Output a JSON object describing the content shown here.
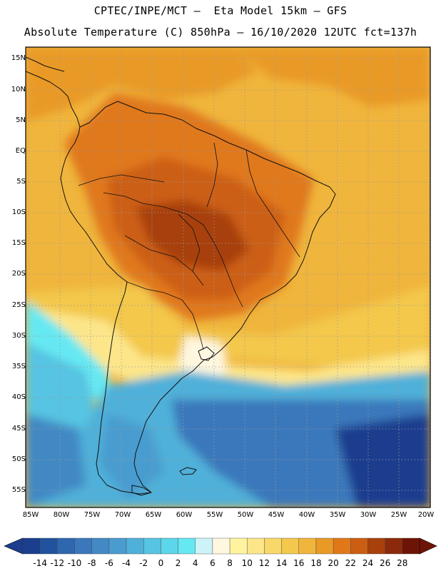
{
  "header": {
    "line1": "CPTEC/INPE/MCT –  Eta Model 15km – GFS",
    "line2": "Absolute Temperature (C) 850hPa – 16/10/2020 12UTC fct=137h"
  },
  "map": {
    "latitude_labels": [
      "15N",
      "10N",
      "5N",
      "EQ",
      "5S",
      "10S",
      "15S",
      "20S",
      "25S",
      "30S",
      "35S",
      "40S",
      "45S",
      "50S",
      "55S"
    ],
    "longitude_labels": [
      "85W",
      "80W",
      "75W",
      "70W",
      "65W",
      "60W",
      "55W",
      "50W",
      "45W",
      "40W",
      "35W",
      "30W",
      "25W",
      "20W"
    ],
    "lat_range": [
      15,
      -57.5
    ],
    "lon_range": [
      -85.5,
      -20
    ],
    "grid": "dotted"
  },
  "legend": {
    "labels": [
      "-14",
      "-12",
      "-10",
      "-8",
      "-6",
      "-4",
      "-2",
      "0",
      "2",
      "4",
      "6",
      "8",
      "10",
      "12",
      "14",
      "16",
      "18",
      "20",
      "22",
      "24",
      "26",
      "28"
    ],
    "colors": [
      "#1c3e8e",
      "#22529e",
      "#2f67ae",
      "#3a78bb",
      "#4389c4",
      "#4a9ccf",
      "#4fb0d9",
      "#56c4e2",
      "#5cd6ea",
      "#66e8f2",
      "#cdf3f9",
      "#fff7e0",
      "#fff3a0",
      "#fde68a",
      "#f9d86a",
      "#f3c84c",
      "#f0b53c",
      "#e99a26",
      "#e0781a",
      "#cc5e13",
      "#a8400c",
      "#8b2a0a",
      "#6e1406"
    ],
    "arrow_left_color": "#1c3e8e",
    "arrow_right_color": "#6e1406"
  }
}
